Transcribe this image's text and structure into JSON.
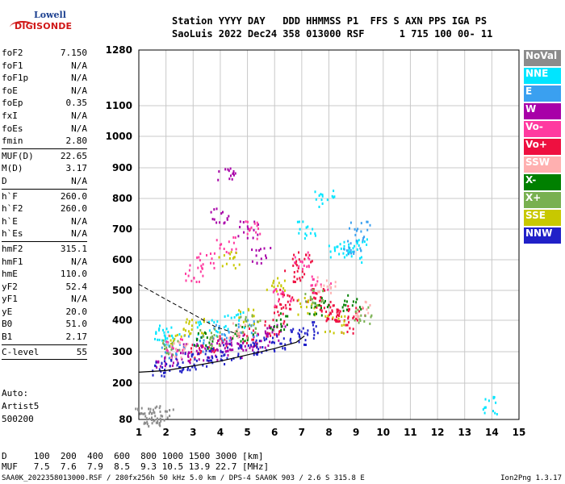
{
  "logo": {
    "top": "Lowell",
    "bottom": "DIGISONDE"
  },
  "header": {
    "line1": "Station YYYY DAY   DDD HHMMSS P1  FFS S AXN PPS IGA PS",
    "line2": "SaoLuis 2022 Dec24 358 013000 RSF      1 715 100 00- 11"
  },
  "params": {
    "groups": [
      [
        {
          "label": "foF2",
          "value": "7.150"
        },
        {
          "label": "foF1",
          "value": "N/A"
        },
        {
          "label": "foF1p",
          "value": "N/A"
        },
        {
          "label": "foE",
          "value": "N/A"
        },
        {
          "label": "foEp",
          "value": "0.35"
        },
        {
          "label": "fxI",
          "value": "N/A"
        },
        {
          "label": "foEs",
          "value": "N/A"
        },
        {
          "label": "fmin",
          "value": "2.80"
        }
      ],
      [
        {
          "label": "MUF(D)",
          "value": "22.65"
        },
        {
          "label": "M(D)",
          "value": "3.17"
        },
        {
          "label": "D",
          "value": "N/A"
        }
      ],
      [
        {
          "label": "h`F",
          "value": "260.0"
        },
        {
          "label": "h`F2",
          "value": "260.0"
        },
        {
          "label": "h`E",
          "value": "N/A"
        },
        {
          "label": "h`Es",
          "value": "N/A"
        }
      ],
      [
        {
          "label": "hmF2",
          "value": "315.1"
        },
        {
          "label": "hmF1",
          "value": "N/A"
        },
        {
          "label": "hmE",
          "value": "110.0"
        },
        {
          "label": "yF2",
          "value": "52.4"
        },
        {
          "label": "yF1",
          "value": "N/A"
        },
        {
          "label": "yE",
          "value": "20.0"
        },
        {
          "label": "B0",
          "value": "51.0"
        },
        {
          "label": "B1",
          "value": "2.17"
        }
      ],
      [
        {
          "label": "C-level",
          "value": "55"
        }
      ]
    ],
    "auto": [
      "Auto:",
      "Artist5",
      "500200"
    ]
  },
  "legend": [
    {
      "label": "NoVal",
      "color": "#8c8c8c"
    },
    {
      "label": "NNE",
      "color": "#00e5ff"
    },
    {
      "label": "E",
      "color": "#3aa0f0"
    },
    {
      "label": "W",
      "color": "#a800a8"
    },
    {
      "label": "Vo-",
      "color": "#ff3aa0"
    },
    {
      "label": "Vo+",
      "color": "#ee1040"
    },
    {
      "label": "SSW",
      "color": "#ffb0b0"
    },
    {
      "label": "X-",
      "color": "#008000"
    },
    {
      "label": "X+",
      "color": "#78b050"
    },
    {
      "label": "SSE",
      "color": "#c8c800"
    },
    {
      "label": "NNW",
      "color": "#2020c8"
    }
  ],
  "footer": {
    "d_row": "D     100  200  400  600  800 1000 1500 3000 [km]",
    "muf_row": "MUF   7.5  7.6  7.9  8.5  9.3 10.5 13.9 22.7 [MHz]",
    "left": "SAA0K_2022358013000.RSF / 280fx256h 50 kHz 5.0 km / DPS-4 SAA0K 903 / 2.6 S 315.8 E",
    "right": "Ion2Png 1.3.17"
  },
  "chart_data": {
    "type": "scatter",
    "xlim": [
      1,
      15
    ],
    "ylim": [
      80,
      1280
    ],
    "y_scale": "ionogram-virtual-height (nonlinear)",
    "x_ticks": [
      1,
      2,
      3,
      4,
      5,
      6,
      7,
      8,
      9,
      10,
      11,
      12,
      13,
      14,
      15
    ],
    "y_ticks": [
      80,
      200,
      300,
      400,
      500,
      600,
      700,
      800,
      900,
      1000,
      1100,
      1280
    ],
    "grid": true,
    "series": [
      {
        "color_key": "Vo+",
        "points": [
          [
            3.2,
            300
          ],
          [
            4,
            330
          ],
          [
            5,
            350
          ],
          [
            6,
            380
          ],
          [
            6.3,
            420
          ],
          [
            6.5,
            480
          ],
          [
            6.7,
            560
          ],
          [
            7,
            600
          ],
          [
            7.5,
            480
          ],
          [
            7.8,
            460
          ],
          [
            8,
            430
          ],
          [
            8.3,
            410
          ],
          [
            8.6,
            390
          ],
          [
            9,
            430
          ]
        ]
      },
      {
        "color_key": "W",
        "points": [
          [
            2,
            270
          ],
          [
            2.5,
            285
          ],
          [
            3,
            300
          ],
          [
            3.5,
            300
          ],
          [
            4,
            320
          ],
          [
            4.5,
            310
          ],
          [
            5,
            330
          ],
          [
            5.5,
            340
          ],
          [
            6,
            360
          ],
          [
            4,
            750
          ],
          [
            4.2,
            880
          ],
          [
            5,
            700
          ],
          [
            5.5,
            620
          ]
        ]
      },
      {
        "color_key": "NNW",
        "points": [
          [
            1.8,
            250
          ],
          [
            2.2,
            260
          ],
          [
            2.8,
            270
          ],
          [
            3.3,
            280
          ],
          [
            3.8,
            290
          ],
          [
            4.4,
            300
          ],
          [
            5,
            310
          ],
          [
            5.6,
            320
          ],
          [
            6.2,
            330
          ],
          [
            6.9,
            350
          ],
          [
            7.2,
            370
          ]
        ]
      },
      {
        "color_key": "NNE",
        "points": [
          [
            1.9,
            350
          ],
          [
            2.1,
            360
          ],
          [
            3.5,
            380
          ],
          [
            4.5,
            400
          ],
          [
            7.2,
            700
          ],
          [
            7.8,
            800
          ],
          [
            8.3,
            640
          ],
          [
            8.8,
            620
          ],
          [
            9,
            650
          ],
          [
            14,
            130
          ]
        ]
      },
      {
        "color_key": "E",
        "points": [
          [
            2.1,
            300
          ],
          [
            3,
            330
          ],
          [
            4,
            360
          ],
          [
            5,
            380
          ],
          [
            8.9,
            640
          ],
          [
            9.1,
            700
          ]
        ]
      },
      {
        "color_key": "Vo-",
        "points": [
          [
            2.3,
            330
          ],
          [
            3,
            560
          ],
          [
            3.5,
            600
          ],
          [
            4.2,
            650
          ],
          [
            5.2,
            700
          ],
          [
            6.3,
            480
          ],
          [
            7,
            600
          ],
          [
            7.7,
            520
          ]
        ]
      },
      {
        "color_key": "SSE",
        "points": [
          [
            2.5,
            350
          ],
          [
            3,
            380
          ],
          [
            4.3,
            600
          ],
          [
            5,
            420
          ],
          [
            6,
            520
          ],
          [
            7.2,
            450
          ],
          [
            8.2,
            390
          ]
        ]
      },
      {
        "color_key": "X-",
        "points": [
          [
            3.4,
            340
          ],
          [
            4.8,
            360
          ],
          [
            6.2,
            400
          ],
          [
            7.6,
            450
          ],
          [
            8.8,
            460
          ]
        ]
      },
      {
        "color_key": "X+",
        "points": [
          [
            2.2,
            320
          ],
          [
            3.6,
            350
          ],
          [
            5.1,
            390
          ],
          [
            7.4,
            480
          ],
          [
            9.2,
            420
          ]
        ]
      },
      {
        "color_key": "SSW",
        "points": [
          [
            2.4,
            310
          ],
          [
            4.6,
            370
          ],
          [
            7.9,
            520
          ],
          [
            9.3,
            440
          ]
        ]
      },
      {
        "color_key": "NoVal",
        "points": [
          [
            1.2,
            90
          ],
          [
            1.4,
            95
          ],
          [
            1.6,
            90
          ],
          [
            1.9,
            100
          ]
        ]
      }
    ],
    "curves": {
      "profile_solid": [
        [
          1,
          235
        ],
        [
          2,
          240
        ],
        [
          3,
          255
        ],
        [
          4,
          270
        ],
        [
          5,
          290
        ],
        [
          6,
          310
        ],
        [
          6.8,
          330
        ],
        [
          7.1,
          350
        ]
      ],
      "profile_dashed": [
        [
          1,
          520
        ],
        [
          2,
          470
        ],
        [
          3,
          420
        ],
        [
          3.8,
          380
        ],
        [
          4.5,
          360
        ]
      ]
    }
  }
}
